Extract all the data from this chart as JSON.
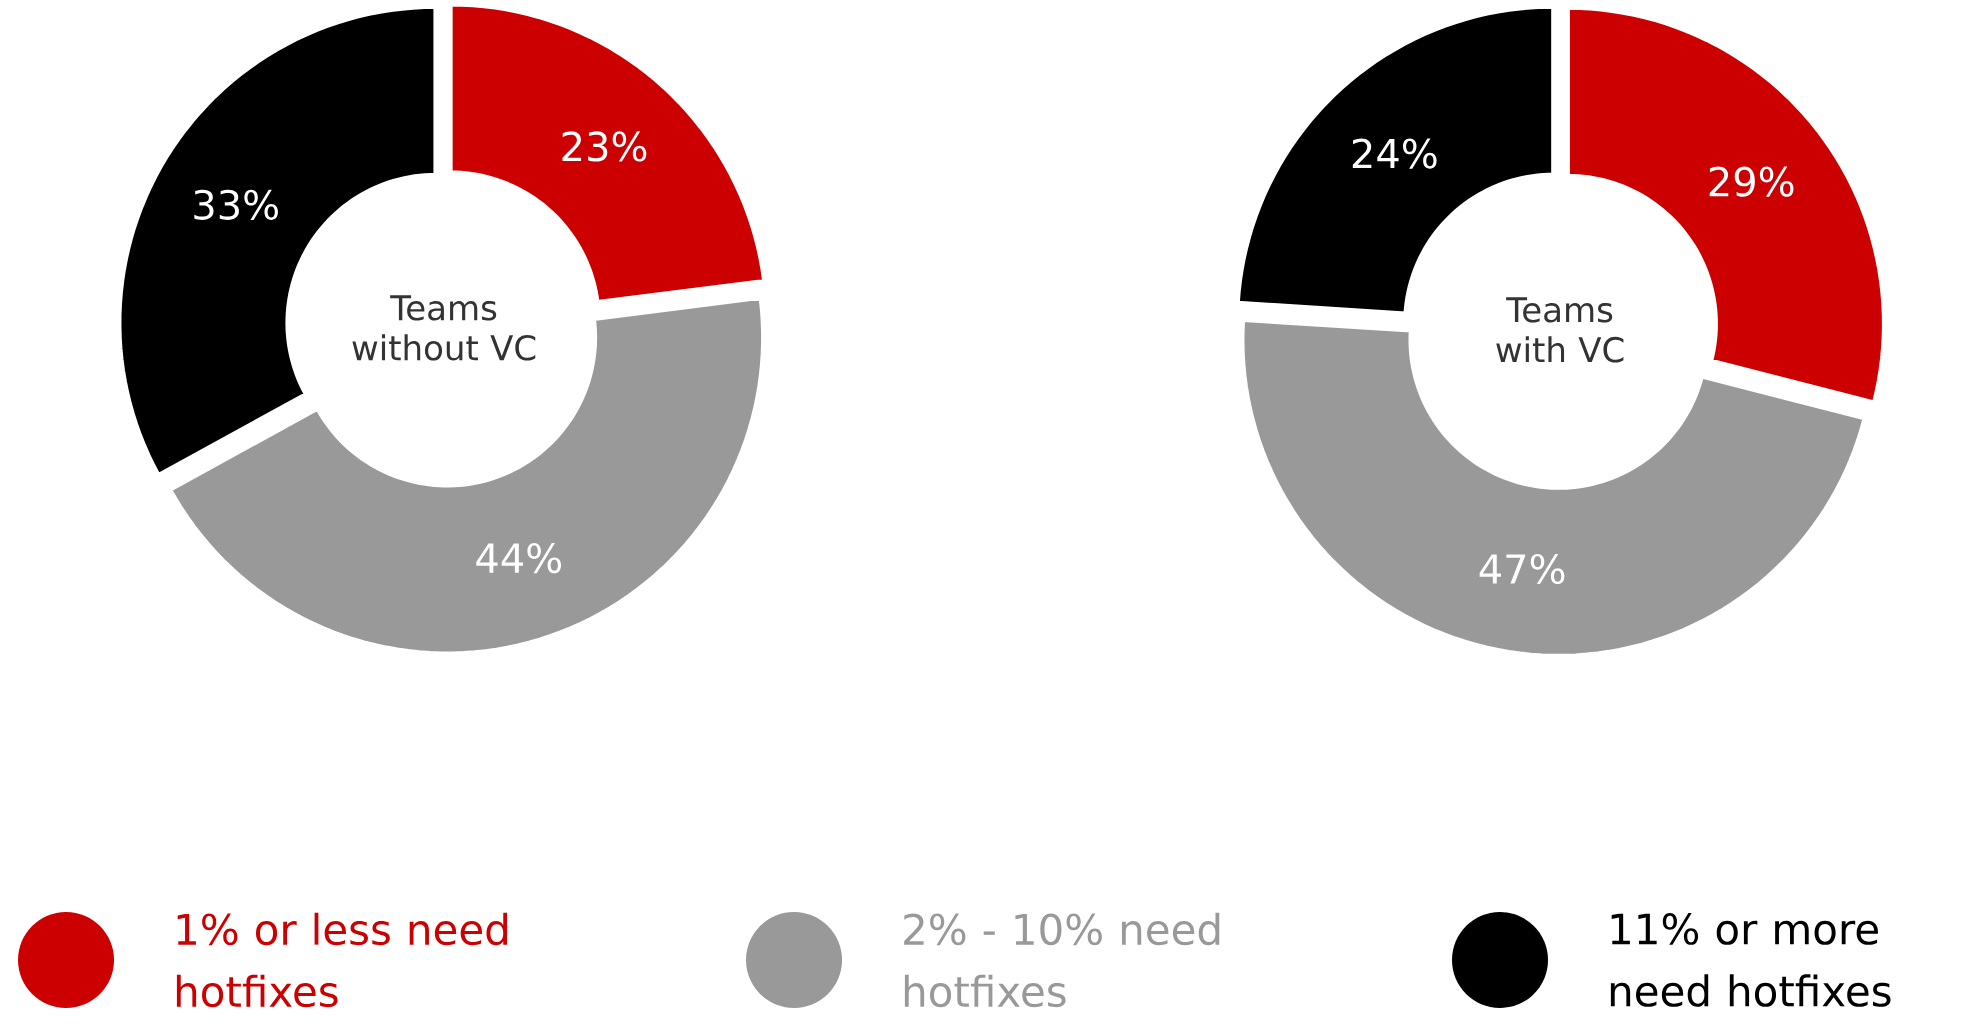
{
  "chart_data": [
    {
      "type": "donut",
      "title": "Teams without VC",
      "categories": [
        "1% or less need hotfixes",
        "2% - 10% need hotfixes",
        "11% or more need hotfixes"
      ],
      "values": [
        23,
        44,
        33
      ],
      "colors": [
        "#cc0000",
        "#999999",
        "#000000"
      ],
      "value_labels": [
        "23%",
        "44%",
        "33%"
      ],
      "legend": "bottom"
    },
    {
      "type": "donut",
      "title": "Teams with VC",
      "categories": [
        null,
        null,
        null
      ],
      "values": [
        29,
        47,
        24
      ],
      "colors": [
        "#cc0000",
        "#999999",
        "#000000"
      ],
      "value_labels": [
        "29%",
        "47%",
        "24%"
      ]
    }
  ]
}
